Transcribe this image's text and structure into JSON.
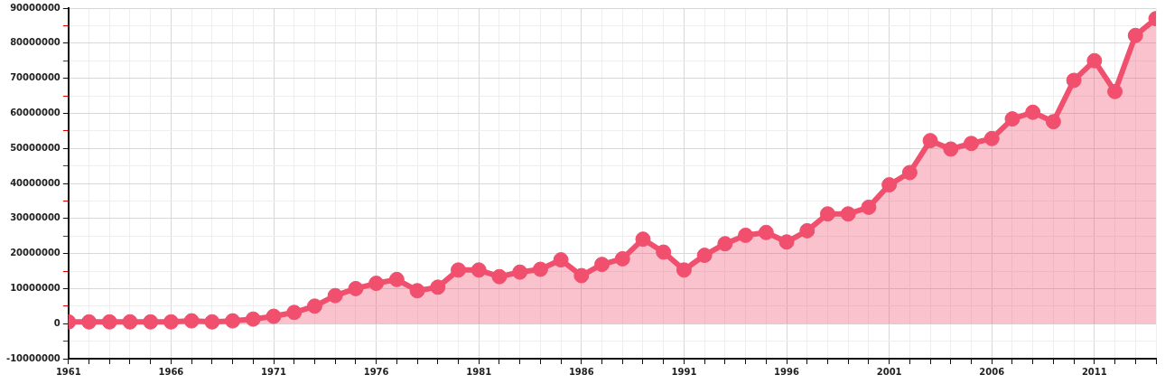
{
  "chart_data": {
    "type": "area",
    "x": [
      1961,
      1962,
      1963,
      1964,
      1965,
      1966,
      1967,
      1968,
      1969,
      1970,
      1971,
      1972,
      1973,
      1974,
      1975,
      1976,
      1977,
      1978,
      1979,
      1980,
      1981,
      1982,
      1983,
      1984,
      1985,
      1986,
      1987,
      1988,
      1989,
      1990,
      1991,
      1992,
      1993,
      1994,
      1995,
      1996,
      1997,
      1998,
      1999,
      2000,
      2001,
      2002,
      2003,
      2004,
      2005,
      2006,
      2007,
      2008,
      2009,
      2010,
      2011,
      2012,
      2013,
      2014
    ],
    "series": [
      {
        "color": "#f0506e",
        "values": [
          500000,
          500000,
          500000,
          500000,
          500000,
          500000,
          800000,
          500000,
          800000,
          1300000,
          2100000,
          3200000,
          5000000,
          8000000,
          10000000,
          11500000,
          12600000,
          9400000,
          10400000,
          15300000,
          15300000,
          13400000,
          14700000,
          15500000,
          18200000,
          13700000,
          16900000,
          18500000,
          24100000,
          20400000,
          15300000,
          19500000,
          22800000,
          25200000,
          26000000,
          23300000,
          26500000,
          31300000,
          31300000,
          33200000,
          39600000,
          43100000,
          52200000,
          49800000,
          51400000,
          52800000,
          58400000,
          60300000,
          57600000,
          69400000,
          75000000,
          66200000,
          82200000,
          87000000
        ]
      }
    ],
    "xlim": [
      1961,
      2014
    ],
    "xticks": [
      1961,
      {
        "value": 1962,
        "label": null
      },
      {
        "value": 1963,
        "label": null
      },
      {
        "value": 1964,
        "label": null
      },
      {
        "value": 1965,
        "label": null
      },
      1966,
      {
        "value": 1967,
        "label": null
      },
      {
        "value": 1968,
        "label": null
      },
      {
        "value": 1969,
        "label": null
      },
      {
        "value": 1970,
        "label": null
      },
      1971,
      {
        "value": 1972,
        "label": null
      },
      {
        "value": 1973,
        "label": null
      },
      {
        "value": 1974,
        "label": null
      },
      {
        "value": 1975,
        "label": null
      },
      1976,
      {
        "value": 1977,
        "label": null
      },
      {
        "value": 1978,
        "label": null
      },
      {
        "value": 1979,
        "label": null
      },
      {
        "value": 1980,
        "label": null
      },
      1981,
      {
        "value": 1982,
        "label": null
      },
      {
        "value": 1983,
        "label": null
      },
      {
        "value": 1984,
        "label": null
      },
      {
        "value": 1985,
        "label": null
      },
      1986,
      {
        "value": 1987,
        "label": null
      },
      {
        "value": 1988,
        "label": null
      },
      {
        "value": 1989,
        "label": null
      },
      {
        "value": 1990,
        "label": null
      },
      1991,
      {
        "value": 1992,
        "label": null
      },
      {
        "value": 1993,
        "label": null
      },
      {
        "value": 1994,
        "label": null
      },
      {
        "value": 1995,
        "label": null
      },
      1996,
      {
        "value": 1997,
        "label": null
      },
      {
        "value": 1998,
        "label": null
      },
      {
        "value": 1999,
        "label": null
      },
      {
        "value": 2000,
        "label": null
      },
      2001,
      {
        "value": 2002,
        "label": null
      },
      {
        "value": 2003,
        "label": null
      },
      {
        "value": 2004,
        "label": null
      },
      {
        "value": 2005,
        "label": null
      },
      2006,
      {
        "value": 2007,
        "label": null
      },
      {
        "value": 2008,
        "label": null
      },
      {
        "value": 2009,
        "label": null
      },
      {
        "value": 2010,
        "label": null
      },
      2011,
      {
        "value": 2012,
        "label": null
      },
      {
        "value": 2013,
        "label": null
      },
      {
        "value": 2014,
        "label": null
      }
    ],
    "ylim": [
      -10000000,
      90000000
    ],
    "yticks": [
      -10000000,
      {
        "value": -5000000,
        "label": null
      },
      0,
      {
        "value": 5000000,
        "label": null
      },
      10000000,
      {
        "value": 15000000,
        "label": null
      },
      20000000,
      {
        "value": 25000000,
        "label": null
      },
      30000000,
      {
        "value": 35000000,
        "label": null
      },
      40000000,
      {
        "value": 45000000,
        "label": null
      },
      50000000,
      {
        "value": 55000000,
        "label": null
      },
      60000000,
      {
        "value": 65000000,
        "label": null
      },
      70000000,
      {
        "value": 75000000,
        "label": null
      },
      80000000,
      {
        "value": 85000000,
        "label": null
      },
      90000000
    ],
    "grid": true,
    "legend": false,
    "marker": "circle",
    "line_style": "solid"
  }
}
